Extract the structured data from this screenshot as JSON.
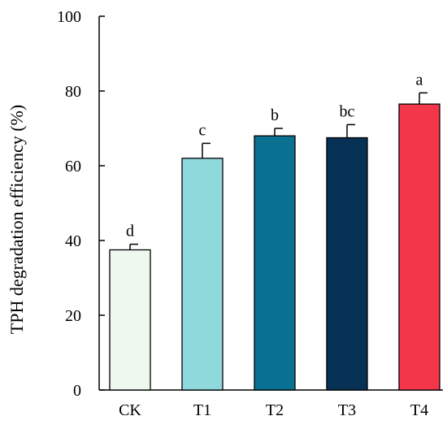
{
  "chart_data": {
    "type": "bar",
    "title": "",
    "xlabel": "",
    "ylabel": "TPH degradation efficiency (%)",
    "ylim": [
      0,
      100
    ],
    "yticks": [
      0,
      20,
      40,
      60,
      80,
      100
    ],
    "categories": [
      "CK",
      "T1",
      "T2",
      "T3",
      "T4"
    ],
    "values": [
      37.5,
      62,
      68,
      67.5,
      76.5
    ],
    "errors": [
      1.5,
      4,
      2,
      3.5,
      3
    ],
    "significance_letters": [
      "d",
      "c",
      "b",
      "bc",
      "a"
    ],
    "colors": [
      "#eef8ef",
      "#8fd8dc",
      "#0b7193",
      "#073256",
      "#f4364a"
    ],
    "grid": false,
    "legend": "none"
  }
}
